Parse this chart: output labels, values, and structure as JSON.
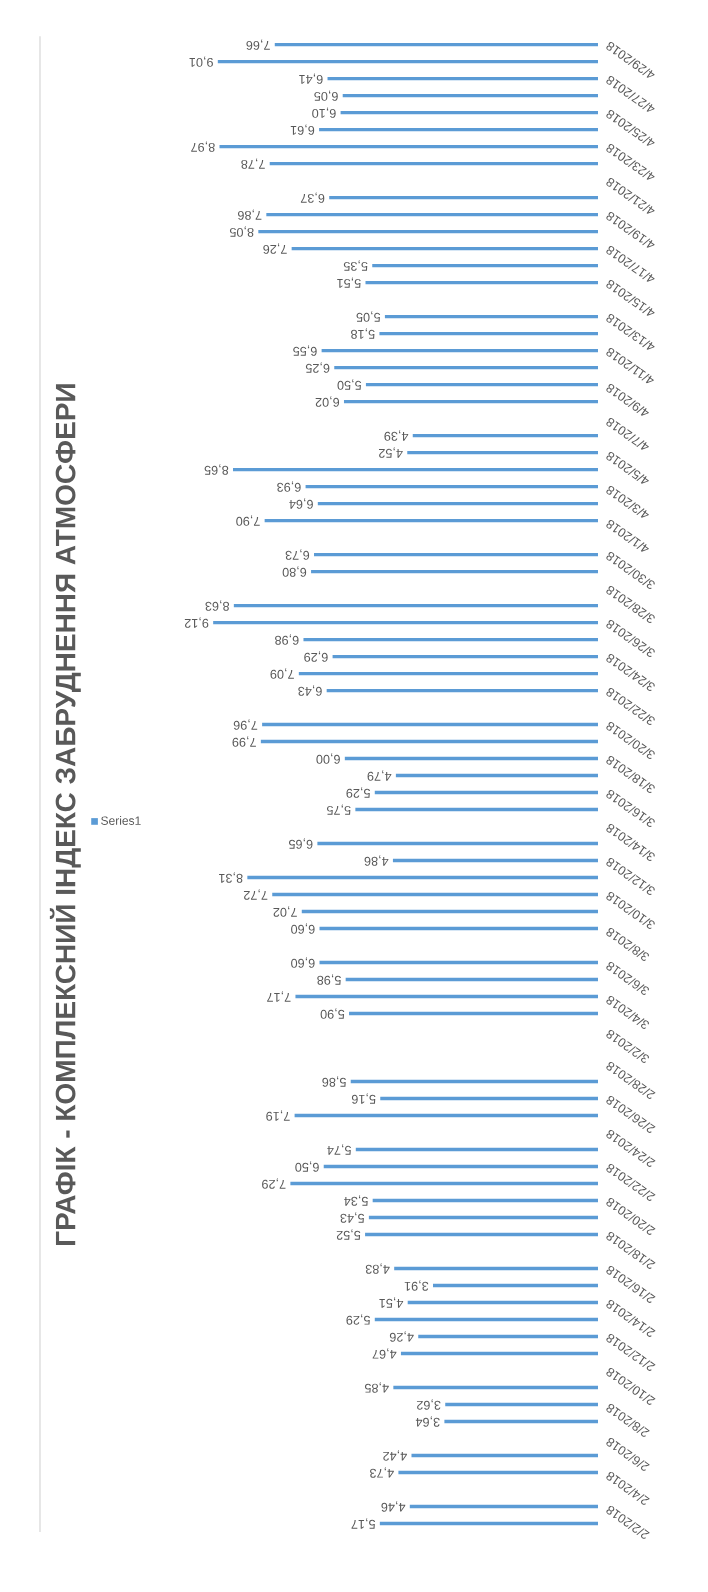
{
  "chart_data": {
    "type": "bar",
    "orientation": "horizontal",
    "title": "ГРАФІК - КОМПЛЕКСНИЙ ІНДЕКС ЗАБРУДНЕННЯ АТМОСФЕРИ",
    "legend": "left",
    "categories": [
      null,
      "4/29/2018",
      null,
      "4/27/2018",
      null,
      "4/25/2018",
      null,
      "4/23/2018",
      null,
      "4/21/2018",
      null,
      "4/19/2018",
      null,
      "4/17/2018",
      null,
      "4/15/2018",
      null,
      "4/13/2018",
      null,
      "4/11/2018",
      null,
      "4/9/2018",
      null,
      "4/7/2018",
      null,
      "4/5/2018",
      null,
      "4/3/2018",
      null,
      "4/1/2018",
      null,
      "3/30/2018",
      null,
      "3/28/2018",
      null,
      "3/26/2018",
      null,
      "3/24/2018",
      null,
      "3/22/2018",
      null,
      "3/20/2018",
      null,
      "3/18/2018",
      null,
      "3/16/2018",
      null,
      "3/14/2018",
      null,
      "3/12/2018",
      null,
      "3/10/2018",
      null,
      "3/8/2018",
      null,
      "3/6/2018",
      null,
      "3/4/2018",
      null,
      "3/2/2018",
      null,
      "2/28/2018",
      null,
      "2/26/2018",
      null,
      "2/24/2018",
      null,
      "2/22/2018",
      null,
      "2/20/2018",
      null,
      "2/18/2018",
      null,
      "2/16/2018",
      null,
      "2/14/2018",
      null,
      "2/12/2018",
      null,
      "2/10/2018",
      null,
      "2/8/2018",
      null,
      "2/6/2018",
      null,
      "2/4/2018",
      null,
      "2/2/2018"
    ],
    "series": [
      {
        "name": "Series1",
        "color": "#5b9bd5",
        "values": [
          7.66,
          9.01,
          6.41,
          6.05,
          6.1,
          6.61,
          8.97,
          7.78,
          null,
          6.37,
          7.86,
          8.05,
          7.26,
          5.35,
          5.51,
          null,
          5.05,
          5.18,
          6.55,
          6.25,
          5.5,
          6.02,
          null,
          4.39,
          4.52,
          8.65,
          6.93,
          6.64,
          7.9,
          null,
          6.73,
          6.8,
          null,
          8.63,
          9.12,
          6.98,
          6.29,
          7.09,
          6.43,
          null,
          7.96,
          7.99,
          6.0,
          4.79,
          5.29,
          5.75,
          null,
          6.65,
          4.86,
          8.31,
          7.72,
          7.02,
          6.6,
          null,
          6.6,
          5.98,
          7.17,
          5.9,
          null,
          null,
          null,
          5.86,
          5.16,
          7.19,
          null,
          5.74,
          6.5,
          7.29,
          5.34,
          5.43,
          5.52,
          null,
          4.83,
          3.91,
          4.51,
          5.29,
          4.26,
          4.67,
          null,
          4.85,
          3.62,
          3.64,
          null,
          4.42,
          4.73,
          null,
          4.46,
          5.17
        ],
        "value_labels": [
          "7,66",
          "9,01",
          "6,41",
          "6,05",
          "6,10",
          "6,61",
          "8,97",
          "7,78",
          null,
          "6,37",
          "7,86",
          "8,05",
          "7,26",
          "5,35",
          "5,51",
          null,
          "5,05",
          "5,18",
          "6,55",
          "6,25",
          "5,50",
          "6,02",
          null,
          "4,39",
          "4,52",
          "8,65",
          "6,93",
          "6,64",
          "7,90",
          null,
          "6,73",
          "6,80",
          null,
          "8,63",
          "9,12",
          "6,98",
          "6,29",
          "7,09",
          "6,43",
          null,
          "7,96",
          "7,99",
          "6,00",
          "4,79",
          "5,29",
          "5,75",
          null,
          "6,65",
          "4,86",
          "8,31",
          "7,72",
          "7,02",
          "6,60",
          null,
          "6,60",
          "5,98",
          "7,17",
          "5,90",
          null,
          null,
          null,
          "5,86",
          "5,16",
          "7,19",
          null,
          "5,74",
          "6,50",
          "7,29",
          "5,34",
          "5,43",
          "5,52",
          null,
          "4,83",
          "3,91",
          "4,51",
          "5,29",
          "4,26",
          "4,67",
          null,
          "4,85",
          "3,62",
          "3,64",
          null,
          "4,42",
          "4,73",
          null,
          "4,46",
          "5,17"
        ]
      }
    ]
  }
}
